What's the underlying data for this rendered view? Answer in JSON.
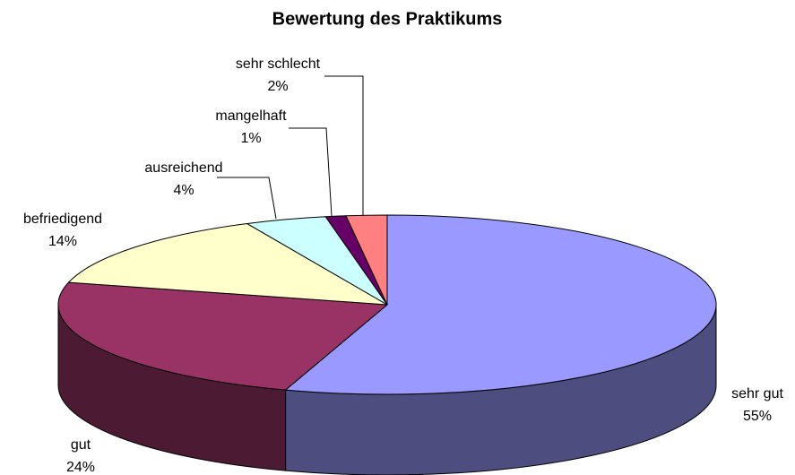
{
  "chart_data": {
    "type": "pie3d",
    "title": "Bewertung des Praktikums",
    "categories": [
      "sehr gut",
      "gut",
      "befriedigend",
      "ausreichend",
      "mangelhaft",
      "sehr schlecht"
    ],
    "values": [
      55,
      24,
      14,
      4,
      1,
      2
    ],
    "value_labels": [
      "55%",
      "24%",
      "14%",
      "4%",
      "1%",
      "2%"
    ],
    "colors": [
      "#9999ff",
      "#993366",
      "#ffffcc",
      "#ccffff",
      "#660066",
      "#ff8080"
    ]
  }
}
